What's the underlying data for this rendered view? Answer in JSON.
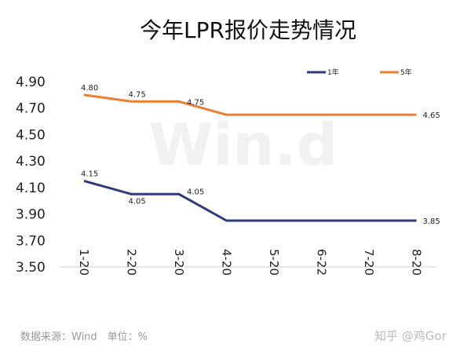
{
  "chart_data": {
    "type": "line",
    "title": "今年LPR报价走势情况",
    "categories": [
      "1-20",
      "2-20",
      "3-20",
      "4-20",
      "5-20",
      "6-22",
      "7-20",
      "8-20"
    ],
    "series": [
      {
        "name": "1年",
        "color": "#2e3a7a",
        "values": [
          4.15,
          4.05,
          4.05,
          3.85,
          3.85,
          3.85,
          3.85,
          3.85
        ],
        "data_labels": [
          "4.15",
          "4.05",
          "4.05",
          "",
          "",
          "",
          "",
          "3.85"
        ]
      },
      {
        "name": "5年",
        "color": "#ed7d31",
        "values": [
          4.8,
          4.75,
          4.75,
          4.65,
          4.65,
          4.65,
          4.65,
          4.65
        ],
        "data_labels": [
          "4.80",
          "4.75",
          "4.75",
          "",
          "",
          "",
          "",
          "4.65"
        ]
      }
    ],
    "yticks": [
      "4.90",
      "4.70",
      "4.50",
      "4.30",
      "4.10",
      "3.90",
      "3.70",
      "3.50"
    ],
    "ylim": [
      3.5,
      4.9
    ],
    "legend": "top-right",
    "grid": false
  },
  "footer": {
    "source": "数据来源：Wind　单位：%",
    "credit": "知乎 @鸡Gor"
  },
  "watermark": "Win.d"
}
